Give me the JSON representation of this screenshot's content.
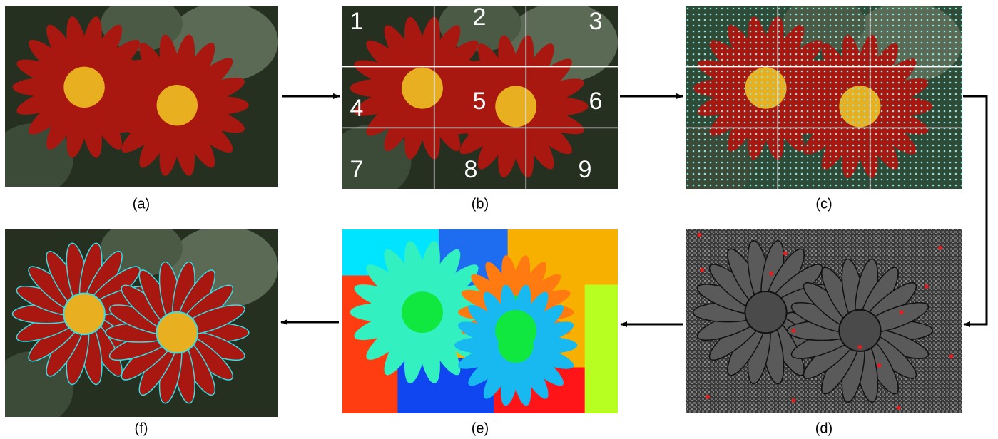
{
  "panels": [
    {
      "label": "(a)"
    },
    {
      "label": "(b)"
    },
    {
      "label": "(c)"
    },
    {
      "label": "(d)"
    },
    {
      "label": "(e)"
    },
    {
      "label": "(f)"
    }
  ],
  "grid_numbers": [
    "1",
    "2",
    "3",
    "4",
    "5",
    "6",
    "7",
    "8",
    "9"
  ]
}
